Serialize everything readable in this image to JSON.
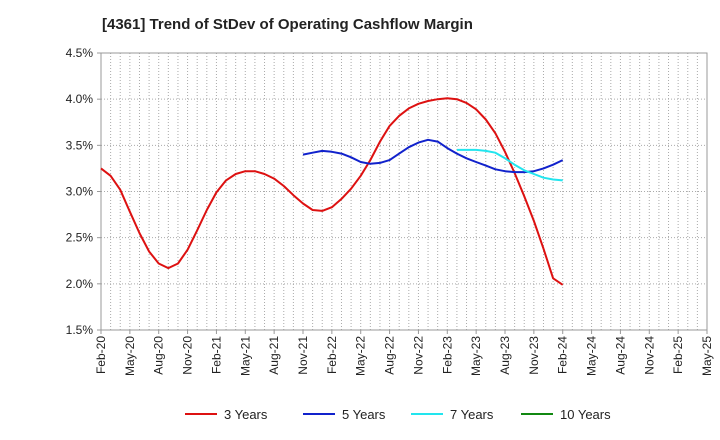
{
  "chart_data": {
    "type": "line",
    "title": "[4361]  Trend of StDev of Operating Cashflow Margin",
    "xlabel": "",
    "ylabel": "",
    "ylim": [
      1.5,
      4.5
    ],
    "yticks": [
      "1.5%",
      "2.0%",
      "2.5%",
      "3.0%",
      "3.5%",
      "4.0%",
      "4.5%"
    ],
    "ytick_values": [
      1.5,
      2.0,
      2.5,
      3.0,
      3.5,
      4.0,
      4.5
    ],
    "x_start": "Feb-20",
    "xticks": [
      "Feb-20",
      "May-20",
      "Aug-20",
      "Nov-20",
      "Feb-21",
      "May-21",
      "Aug-21",
      "Nov-21",
      "Feb-22",
      "May-22",
      "Aug-22",
      "Nov-22",
      "Feb-23",
      "May-23",
      "Aug-23",
      "Nov-23",
      "Feb-24",
      "May-24",
      "Aug-24",
      "Nov-24",
      "Feb-25",
      "May-25"
    ],
    "xtick_months": [
      0,
      3,
      6,
      9,
      12,
      15,
      18,
      21,
      24,
      27,
      30,
      33,
      36,
      39,
      42,
      45,
      48,
      51,
      54,
      57,
      60,
      63
    ],
    "grid": true,
    "legend_position": "bottom",
    "series": [
      {
        "name": "3 Years",
        "color": "#dd1111",
        "points": [
          [
            0,
            3.25
          ],
          [
            1,
            3.17
          ],
          [
            2,
            3.02
          ],
          [
            3,
            2.78
          ],
          [
            4,
            2.55
          ],
          [
            5,
            2.35
          ],
          [
            6,
            2.22
          ],
          [
            7,
            2.17
          ],
          [
            8,
            2.22
          ],
          [
            9,
            2.37
          ],
          [
            10,
            2.58
          ],
          [
            11,
            2.8
          ],
          [
            12,
            2.99
          ],
          [
            13,
            3.12
          ],
          [
            14,
            3.19
          ],
          [
            15,
            3.22
          ],
          [
            16,
            3.22
          ],
          [
            17,
            3.19
          ],
          [
            18,
            3.14
          ],
          [
            19,
            3.06
          ],
          [
            20,
            2.96
          ],
          [
            21,
            2.87
          ],
          [
            22,
            2.8
          ],
          [
            23,
            2.79
          ],
          [
            24,
            2.83
          ],
          [
            25,
            2.92
          ],
          [
            26,
            3.03
          ],
          [
            27,
            3.17
          ],
          [
            28,
            3.34
          ],
          [
            29,
            3.54
          ],
          [
            30,
            3.71
          ],
          [
            31,
            3.82
          ],
          [
            32,
            3.9
          ],
          [
            33,
            3.95
          ],
          [
            34,
            3.98
          ],
          [
            35,
            4.0
          ],
          [
            36,
            4.01
          ],
          [
            37,
            4.0
          ],
          [
            38,
            3.96
          ],
          [
            39,
            3.89
          ],
          [
            40,
            3.78
          ],
          [
            41,
            3.63
          ],
          [
            42,
            3.43
          ],
          [
            43,
            3.2
          ],
          [
            44,
            2.95
          ],
          [
            45,
            2.68
          ],
          [
            46,
            2.38
          ],
          [
            47,
            2.06
          ],
          [
            48,
            1.99
          ]
        ]
      },
      {
        "name": "5 Years",
        "color": "#1122cc",
        "points": [
          [
            21,
            3.4
          ],
          [
            22,
            3.42
          ],
          [
            23,
            3.44
          ],
          [
            24,
            3.43
          ],
          [
            25,
            3.41
          ],
          [
            26,
            3.37
          ],
          [
            27,
            3.32
          ],
          [
            28,
            3.3
          ],
          [
            29,
            3.31
          ],
          [
            30,
            3.34
          ],
          [
            31,
            3.41
          ],
          [
            32,
            3.48
          ],
          [
            33,
            3.53
          ],
          [
            34,
            3.56
          ],
          [
            35,
            3.54
          ],
          [
            36,
            3.47
          ],
          [
            37,
            3.41
          ],
          [
            38,
            3.36
          ],
          [
            39,
            3.32
          ],
          [
            40,
            3.28
          ],
          [
            41,
            3.24
          ],
          [
            42,
            3.22
          ],
          [
            43,
            3.21
          ],
          [
            44,
            3.21
          ],
          [
            45,
            3.22
          ],
          [
            46,
            3.25
          ],
          [
            47,
            3.29
          ],
          [
            48,
            3.34
          ]
        ]
      },
      {
        "name": "7 Years",
        "color": "#22e5ee",
        "points": [
          [
            37,
            3.45
          ],
          [
            38,
            3.45
          ],
          [
            39,
            3.45
          ],
          [
            40,
            3.44
          ],
          [
            41,
            3.42
          ],
          [
            42,
            3.36
          ],
          [
            43,
            3.29
          ],
          [
            44,
            3.23
          ],
          [
            45,
            3.19
          ],
          [
            46,
            3.15
          ],
          [
            47,
            3.13
          ],
          [
            48,
            3.12
          ]
        ]
      },
      {
        "name": "10 Years",
        "color": "#118811",
        "points": []
      }
    ]
  }
}
